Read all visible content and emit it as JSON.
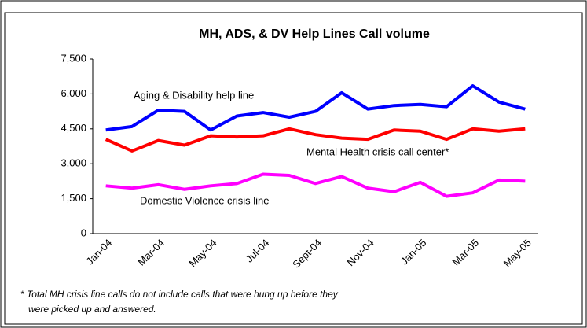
{
  "chart_data": {
    "type": "line",
    "title": "MH, ADS, & DV Help Lines Call volume",
    "categories": [
      "Jan-04",
      null,
      "Mar-04",
      null,
      "May-04",
      null,
      "Jul-04",
      null,
      "Sept-04",
      null,
      "Nov-04",
      null,
      "Jan-05",
      null,
      "Mar-05",
      null,
      "May-05"
    ],
    "series": [
      {
        "name": "Aging & Disability help line",
        "color": "#0000ff",
        "values": [
          4450,
          4600,
          5300,
          5250,
          4450,
          5050,
          5200,
          5000,
          5250,
          6050,
          5350,
          5500,
          5550,
          5450,
          6350,
          5650,
          5350
        ]
      },
      {
        "name": "Mental Health crisis call center*",
        "color": "#ff0000",
        "values": [
          4050,
          3550,
          4000,
          3800,
          4200,
          4150,
          4200,
          4500,
          4250,
          4100,
          4050,
          4450,
          4400,
          4050,
          4500,
          4400,
          4500
        ]
      },
      {
        "name": "Domestic Violence crisis line",
        "color": "#ff00ff",
        "values": [
          2050,
          1950,
          2100,
          1900,
          2050,
          2150,
          2550,
          2500,
          2150,
          2450,
          1950,
          1800,
          2200,
          1600,
          1750,
          2300,
          2250
        ]
      }
    ],
    "ylim": [
      0,
      7500
    ],
    "yticks": [
      0,
      {
        "value": 1500,
        "label": "1,500"
      },
      {
        "value": 3000,
        "label": "3,000"
      },
      {
        "value": 4500,
        "label": "4,500"
      },
      {
        "value": 6000,
        "label": "6,000"
      },
      {
        "value": 7500,
        "label": "7,500"
      }
    ],
    "grid": false,
    "footnote": [
      "* Total MH crisis line calls do not include calls that were hung up before they",
      "were picked up and answered."
    ]
  }
}
